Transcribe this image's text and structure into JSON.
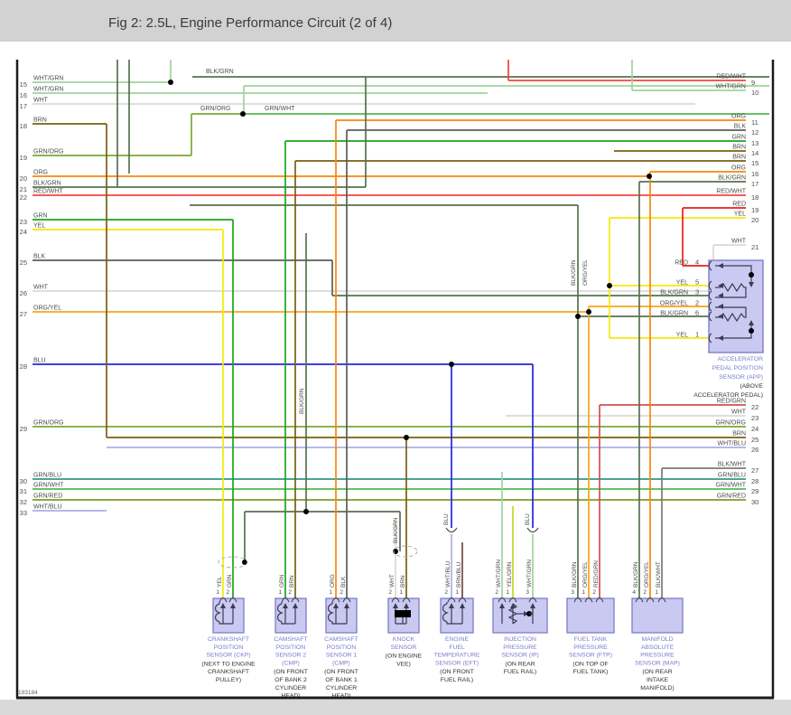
{
  "title": "Fig 2: 2.5L, Engine Performance Circuit (2 of 4)",
  "figure_number": "193184",
  "palette": {
    "WHT/GRN": "#9fd39b",
    "WHT": "#d9d9d9",
    "BRN": "#7a5f10",
    "GRN/ORG": "#7baa31",
    "ORG": "#f8860b",
    "BLK/GRN": "#57704f",
    "RED/WHT": "#f4443c",
    "GRN": "#19a619",
    "YEL": "#f2ea0a",
    "BLK": "#5c5c5c",
    "ORG/YEL": "#f5a51d",
    "BLU": "#2525dd",
    "GRN/BLU": "#2f9a84",
    "GRN/WHT": "#52ba52",
    "GRN/RED": "#7e9c25",
    "WHT/BLU": "#aeaee6",
    "RED": "#ec1c1c",
    "RED/GRN": "#d05050",
    "BLK/WHT": "#7a7a7a",
    "BRN/BLU": "#6d4a46",
    "YEL/GRN": "#c6d620",
    "box_fill": "#c9c9f1",
    "box_stroke": "#7d7dc8",
    "blue_text": "#7b7bd0",
    "label_text": "#4d4d4d",
    "title_bar": "#d2d2d2",
    "internal": "#3c3c50"
  },
  "left_pins": [
    {
      "num": "15",
      "color": "WHT/GRN"
    },
    {
      "num": "16",
      "color": "WHT/GRN"
    },
    {
      "num": "17",
      "color": "WHT"
    },
    {
      "num": "18",
      "color": "BRN"
    },
    {
      "num": "19",
      "color": "GRN/ORG"
    },
    {
      "num": "20",
      "color": "ORG"
    },
    {
      "num": "21",
      "color": "BLK/GRN"
    },
    {
      "num": "22",
      "color": "RED/WHT"
    },
    {
      "num": "23",
      "color": "GRN"
    },
    {
      "num": "24",
      "color": "YEL"
    },
    {
      "num": "25",
      "color": "BLK"
    },
    {
      "num": "26",
      "color": "WHT"
    },
    {
      "num": "27",
      "color": "ORG/YEL"
    },
    {
      "num": "28",
      "color": "BLU"
    },
    {
      "num": "29",
      "color": "GRN/ORG"
    },
    {
      "num": "30",
      "color": "GRN/BLU"
    },
    {
      "num": "31",
      "color": "GRN/WHT"
    },
    {
      "num": "32",
      "color": "GRN/RED"
    },
    {
      "num": "33",
      "color": "WHT/BLU"
    }
  ],
  "right_pins": [
    {
      "num": "9",
      "color": "RED/WHT"
    },
    {
      "num": "10",
      "color": "WHT/GRN"
    },
    {
      "num": "11",
      "color": "ORG"
    },
    {
      "num": "12",
      "color": "BLK"
    },
    {
      "num": "13",
      "color": "GRN"
    },
    {
      "num": "14",
      "color": "BRN"
    },
    {
      "num": "15",
      "color": "BRN"
    },
    {
      "num": "16",
      "color": "ORG"
    },
    {
      "num": "17",
      "color": "BLK/GRN"
    },
    {
      "num": "18",
      "color": "RED/WHT"
    },
    {
      "num": "19",
      "color": "RED"
    },
    {
      "num": "20",
      "color": "YEL"
    },
    {
      "num": "21",
      "color": "WHT"
    },
    {
      "num": "22",
      "color": "RED/GRN"
    },
    {
      "num": "23",
      "color": "WHT"
    },
    {
      "num": "24",
      "color": "GRN/ORG"
    },
    {
      "num": "25",
      "color": "BRN"
    },
    {
      "num": "26",
      "color": "WHT/BLU"
    },
    {
      "num": "27",
      "color": "BLK/WHT"
    },
    {
      "num": "28",
      "color": "GRN/BLU"
    },
    {
      "num": "29",
      "color": "GRN/WHT"
    },
    {
      "num": "30",
      "color": "GRN/RED"
    }
  ],
  "app_sensor": {
    "pins": [
      {
        "num": "4",
        "color": "RED"
      },
      {
        "num": "5",
        "color": "YEL"
      },
      {
        "num": "3",
        "color": "BLK/GRN"
      },
      {
        "num": "2",
        "color": "ORG/YEL"
      },
      {
        "num": "6",
        "color": "BLK/GRN"
      },
      {
        "num": "1",
        "color": "YEL"
      }
    ],
    "name_lines": [
      "ACCELERATOR",
      "PEDAL POSITION",
      "SENSOR (APP)"
    ],
    "location_lines": [
      "(ABOVE",
      "ACCELERATOR PEDAL)"
    ]
  },
  "inline_labels": [
    {
      "text": "BLK/GRN"
    },
    {
      "text": "GRN/ORG"
    },
    {
      "text": "GRN/WHT"
    }
  ],
  "rotated_labels": [
    {
      "text": "BLK/GRN"
    },
    {
      "text": "BLK/GRN"
    },
    {
      "text": "BLU"
    },
    {
      "text": "BLU"
    },
    {
      "text": "BLK/GRN"
    },
    {
      "text": "ORG/YEL"
    }
  ],
  "sensors": [
    {
      "id": "ckp",
      "name_lines": [
        "CRANKSHAFT",
        "POSITION",
        "SENSOR (CKP)"
      ],
      "location_lines": [
        "(NEXT TO ENGINE",
        "CRANKSHAFT",
        "PULLEY)"
      ],
      "pins": [
        {
          "num": "1",
          "color": "YEL"
        },
        {
          "num": "2",
          "color": "GRN"
        }
      ]
    },
    {
      "id": "cmp2",
      "name_lines": [
        "CAMSHAFT",
        "POSITION",
        "SENSOR 2",
        "(CMP)"
      ],
      "location_lines": [
        "(ON FRONT",
        "OF BANK 2",
        "CYLINDER",
        "HEAD)"
      ],
      "pins": [
        {
          "num": "1",
          "color": "GRN"
        },
        {
          "num": "2",
          "color": "BRN"
        }
      ]
    },
    {
      "id": "cmp1",
      "name_lines": [
        "CAMSHAFT",
        "POSITION",
        "SENSOR 1",
        "(CMP)"
      ],
      "location_lines": [
        "(ON FRONT",
        "OF BANK 1",
        "CYLINDER",
        "HEAD)"
      ],
      "pins": [
        {
          "num": "1",
          "color": "ORG"
        },
        {
          "num": "2",
          "color": "BLK"
        }
      ]
    },
    {
      "id": "knock",
      "name_lines": [
        "KNOCK",
        "SENSOR"
      ],
      "location_lines": [
        "(ON ENGINE",
        "VEE)"
      ],
      "pins": [
        {
          "num": "2",
          "color": "WHT"
        },
        {
          "num": "1",
          "color": "BRN"
        }
      ]
    },
    {
      "id": "eft",
      "name_lines": [
        "ENGINE",
        "FUEL",
        "TEMPERATURE",
        "SENSOR (EFT)"
      ],
      "location_lines": [
        "(ON FRONT",
        "FUEL RAIL)"
      ],
      "pins": [
        {
          "num": "2",
          "color": "WHT/BLU"
        },
        {
          "num": "1",
          "color": "BRN/BLU"
        }
      ]
    },
    {
      "id": "ip",
      "name_lines": [
        "INJECTION",
        "PRESSURE",
        "SENSOR (IP)"
      ],
      "location_lines": [
        "(ON REAR",
        "FUEL RAIL)"
      ],
      "pins": [
        {
          "num": "2",
          "color": "WHT/GRN"
        },
        {
          "num": "1",
          "color": "YEL/GRN"
        },
        {
          "num": "3",
          "color": "WHT/GRN"
        }
      ]
    },
    {
      "id": "ftp",
      "name_lines": [
        "FUEL TANK",
        "PRESSURE",
        "SENSOR (FTP)"
      ],
      "location_lines": [
        "(ON TOP OF",
        "FUEL TANK)"
      ],
      "pins": [
        {
          "num": "3",
          "color": "BLK/GRN"
        },
        {
          "num": "1",
          "color": "ORG/YEL"
        },
        {
          "num": "2",
          "color": "RED/GRN"
        }
      ]
    },
    {
      "id": "map",
      "name_lines": [
        "MANIFOLD",
        "ABSOLUTE",
        "PRESSURE",
        "SENSOR (MAP)"
      ],
      "location_lines": [
        "(ON REAR",
        "INTAKE",
        "MANIFOLD)"
      ],
      "pins": [
        {
          "num": "4",
          "color": "BLK/GRN"
        },
        {
          "num": "2",
          "color": "ORG/YEL"
        },
        {
          "num": "1",
          "color": "BLK/WHT"
        }
      ]
    }
  ]
}
